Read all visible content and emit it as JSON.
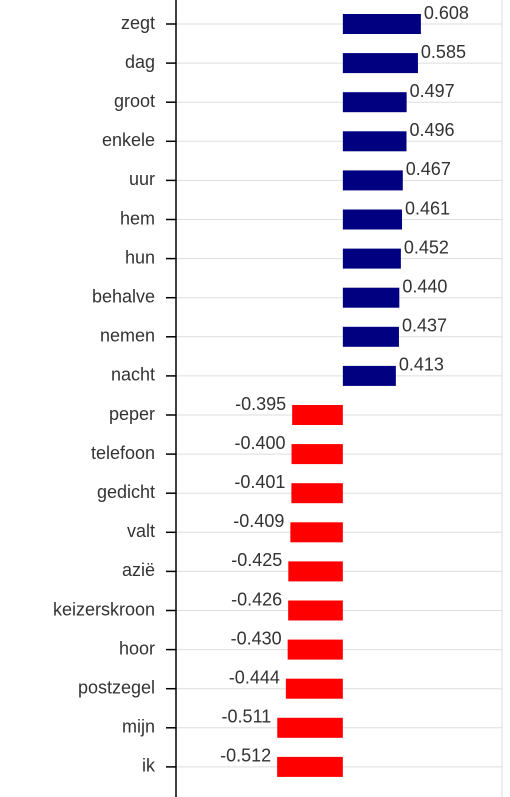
{
  "chart_data": {
    "type": "barh",
    "categories": [
      "zegt",
      "dag",
      "groot",
      "enkele",
      "uur",
      "hem",
      "hun",
      "behalve",
      "nemen",
      "nacht",
      "peper",
      "telefoon",
      "gedicht",
      "valt",
      "azië",
      "keizerskroon",
      "hoor",
      "postzegel",
      "mijn",
      "ik"
    ],
    "values": [
      0.608,
      0.585,
      0.497,
      0.496,
      0.467,
      0.461,
      0.452,
      0.44,
      0.437,
      0.413,
      -0.395,
      -0.4,
      -0.401,
      -0.409,
      -0.425,
      -0.426,
      -0.43,
      -0.444,
      -0.511,
      -0.512
    ],
    "value_labels": [
      "0.608",
      "0.585",
      "0.497",
      "0.496",
      "0.467",
      "0.461",
      "0.452",
      "0.440",
      "0.437",
      "0.413",
      "-0.395",
      "-0.400",
      "-0.401",
      "-0.409",
      "-0.425",
      "-0.426",
      "-0.430",
      "-0.444",
      "-0.511",
      "-0.512"
    ],
    "color_positive": "#000080",
    "color_negative": "#ff0000",
    "xlim": [
      -1.3,
      1.24
    ],
    "grid": true
  }
}
